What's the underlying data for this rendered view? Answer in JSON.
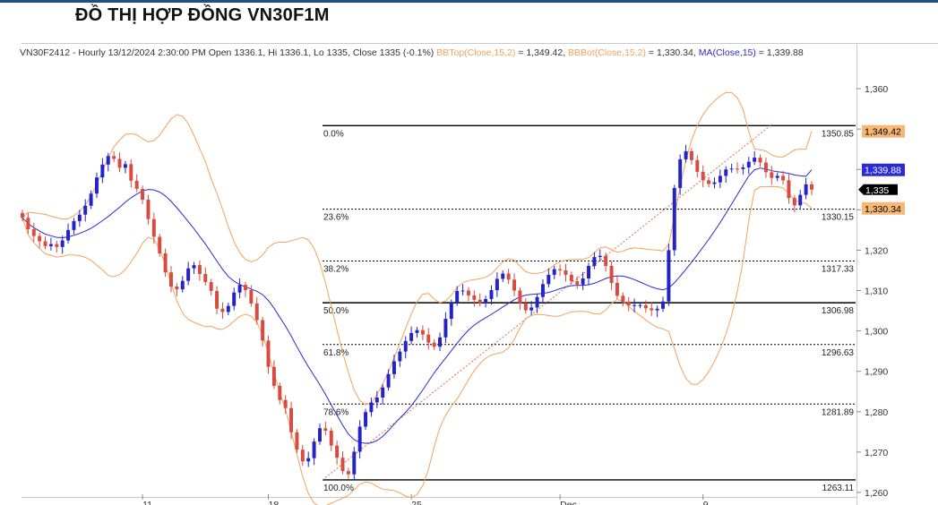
{
  "page": {
    "title": "ĐỒ THỊ HỢP ĐỒNG VN30F1M",
    "header_accent_color": "#1f4e8c"
  },
  "info": {
    "prefix": "VN30F2412 - Hourly 13/12/2024 2:30:00 PM Open 1336.1, Hi 1336.1, Lo 1335, Close 1335 (-0.1%) ",
    "bbtop_label": "BBTop(Close,15,2)",
    "bbtop_value": " = 1,349.42, ",
    "bbbot_label": "BBBot(Close,15,2)",
    "bbbot_value": " = 1,330.34, ",
    "ma_label": "MA(Close,15)",
    "ma_value": " = 1,339.88"
  },
  "chart_data": {
    "type": "candlestick",
    "symbol": "VN30F2412",
    "timeframe": "Hourly",
    "ylim": [
      1258,
      1366
    ],
    "y_ticks": [
      "1,260",
      "1,270",
      "1,280",
      "1,290",
      "1,300",
      "1,310",
      "1,320",
      "1,330",
      "1,340",
      "1,350",
      "1,360"
    ],
    "x_ticks": [
      {
        "label": "11",
        "index": 21
      },
      {
        "label": "18",
        "index": 43
      },
      {
        "label": "25",
        "index": 68
      },
      {
        "label": "Dec",
        "index": 94
      },
      {
        "label": "9",
        "index": 119
      }
    ],
    "candle_count": 139,
    "series": [
      {
        "name": "Close",
        "values": [
          1328.0,
          1325.2,
          1323.5,
          1322.2,
          1321.0,
          1321.5,
          1320.8,
          1322.4,
          1325.0,
          1327.2,
          1328.8,
          1331.0,
          1334.0,
          1338.0,
          1341.2,
          1343.3,
          1342.6,
          1340.4,
          1341.3,
          1337.2,
          1335.2,
          1332.5,
          1327.7,
          1323.3,
          1319.2,
          1314.5,
          1311.0,
          1310.3,
          1312.4,
          1315.5,
          1316.3,
          1314.1,
          1312.1,
          1309.9,
          1305.5,
          1304.7,
          1306.2,
          1309.5,
          1311.4,
          1310.1,
          1306.8,
          1302.7,
          1297.6,
          1291.1,
          1286.4,
          1282.9,
          1280.9,
          1274.9,
          1270.6,
          1267.7,
          1268.5,
          1272.6,
          1275.9,
          1275.3,
          1271.6,
          1268.6,
          1265.3,
          1264.5,
          1270.1,
          1276.3,
          1279.9,
          1282.3,
          1283.5,
          1286.0,
          1289.3,
          1292.5,
          1294.9,
          1297.5,
          1299.5,
          1300.2,
          1299.1,
          1297.1,
          1296.1,
          1298.4,
          1303.0,
          1307.0,
          1309.9,
          1310.0,
          1308.8,
          1307.7,
          1306.9,
          1307.9,
          1310.1,
          1312.9,
          1314.2,
          1312.7,
          1310.0,
          1306.9,
          1305.1,
          1305.8,
          1308.4,
          1311.6,
          1313.9,
          1315.3,
          1315.0,
          1313.9,
          1312.3,
          1311.5,
          1313.0,
          1316.1,
          1318.3,
          1318.6,
          1316.1,
          1311.9,
          1308.7,
          1307.2,
          1306.3,
          1306.4,
          1306.4,
          1305.6,
          1305.1,
          1305.5,
          1307.3,
          1320.0,
          1335.4,
          1342.5,
          1344.5,
          1342.3,
          1339.4,
          1337.3,
          1336.4,
          1336.8,
          1338.4,
          1340.0,
          1340.2,
          1340.1,
          1340.5,
          1341.9,
          1342.9,
          1341.7,
          1339.3,
          1337.9,
          1338.4,
          1337.3,
          1332.9,
          1331.1,
          1333.7,
          1336.3,
          1335.0
        ]
      }
    ],
    "indicators": {
      "bb_top_label": "BBTop(Close,15,2)",
      "bb_bot_label": "BBBot(Close,15,2)",
      "ma_label": "MA(Close,15)",
      "bb_top_last": 1349.42,
      "bb_bot_last": 1330.34,
      "ma_last": 1339.88,
      "close_last": 1335
    },
    "price_tags": [
      {
        "label": "1,349.42",
        "value": 1349.42,
        "bg": "#f6b877",
        "fg": "#000000"
      },
      {
        "label": "1,339.88",
        "value": 1339.88,
        "bg": "#2b2bd6",
        "fg": "#ffffff"
      },
      {
        "label": "1,335",
        "value": 1335,
        "bg": "#000000",
        "fg": "#ffffff"
      },
      {
        "label": "1,330.34",
        "value": 1330.34,
        "bg": "#f6b877",
        "fg": "#000000"
      }
    ],
    "fibonacci": {
      "high": 1350.85,
      "low": 1263.11,
      "start_index": 52,
      "levels": [
        {
          "pct": "0.0%",
          "value": 1350.85,
          "label": "1350.85",
          "solid": true
        },
        {
          "pct": "23.6%",
          "value": 1330.15,
          "label": "1330.15",
          "solid": false
        },
        {
          "pct": "38.2%",
          "value": 1317.33,
          "label": "1317.33",
          "solid": false
        },
        {
          "pct": "50.0%",
          "value": 1306.98,
          "label": "1306.98",
          "solid": true
        },
        {
          "pct": "61.8%",
          "value": 1296.63,
          "label": "1296.63",
          "solid": false
        },
        {
          "pct": "78.6%",
          "value": 1281.89,
          "label": "1281.89",
          "solid": false
        },
        {
          "pct": "100.0%",
          "value": 1263.11,
          "label": "1263.11",
          "solid": true
        }
      ]
    },
    "colors": {
      "up": "#2323c8",
      "down": "#d84b3e",
      "bollinger": "#f2a25c",
      "ma": "#2a2ad0",
      "trend": "#e0704a"
    }
  }
}
